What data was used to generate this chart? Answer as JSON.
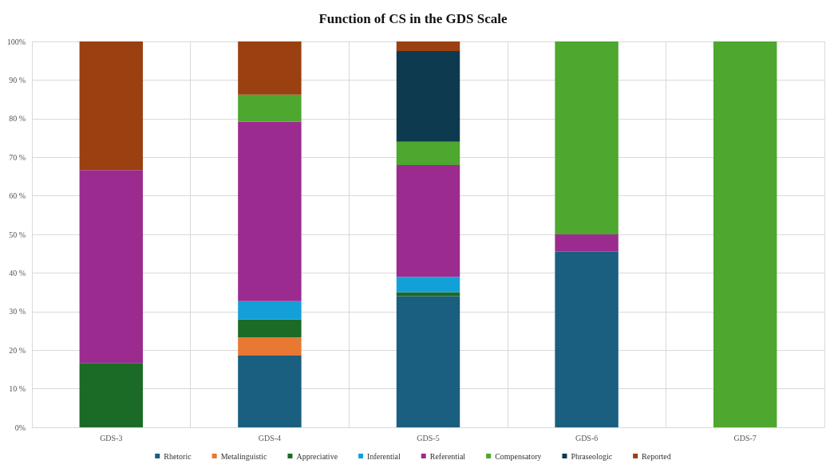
{
  "chart_data": {
    "type": "bar",
    "title": "Function of CS in the GDS Scale",
    "stacked": true,
    "grid": "y",
    "legend": "bottom",
    "categories": [
      "GDS-3",
      "GDS-4",
      "GDS-5",
      "GDS-6",
      "GDS-7"
    ],
    "ylim": [
      0,
      100
    ],
    "yticks": [
      {
        "value": 0,
        "label": "0%"
      },
      {
        "value": 10,
        "label": "10 %"
      },
      {
        "value": 20,
        "label": "20 %"
      },
      {
        "value": 30,
        "label": "30 %"
      },
      {
        "value": 40,
        "label": "40 %"
      },
      {
        "value": 50,
        "label": "50 %"
      },
      {
        "value": 60,
        "label": "60 %"
      },
      {
        "value": 70,
        "label": "70 %"
      },
      {
        "value": 80,
        "label": "80 %"
      },
      {
        "value": 90,
        "label": "90 %"
      },
      {
        "value": 100,
        "label": "100%"
      }
    ],
    "series": [
      {
        "name": "Rhetoric",
        "color": "#1a5e80",
        "values": [
          0,
          18.6,
          34,
          45.5,
          0
        ]
      },
      {
        "name": "Metalinguistic",
        "color": "#e97832",
        "values": [
          0,
          4.7,
          0,
          0,
          0
        ]
      },
      {
        "name": "Appreciative",
        "color": "#1b6b26",
        "values": [
          16.7,
          4.7,
          1,
          0,
          0
        ]
      },
      {
        "name": "Inferential",
        "color": "#13a0d8",
        "values": [
          0,
          4.7,
          4,
          0,
          0
        ]
      },
      {
        "name": "Referential",
        "color": "#9c2b90",
        "values": [
          50,
          46.5,
          29,
          4.5,
          0
        ]
      },
      {
        "name": "Compensatory",
        "color": "#4ea72e",
        "values": [
          0,
          7,
          6,
          50,
          100
        ]
      },
      {
        "name": "Phraseologic",
        "color": "#0e3a50",
        "values": [
          0,
          0,
          23.5,
          0,
          0
        ]
      },
      {
        "name": "Reported",
        "color": "#9a4011",
        "values": [
          33.3,
          13.9,
          2.5,
          0,
          0
        ]
      }
    ]
  }
}
